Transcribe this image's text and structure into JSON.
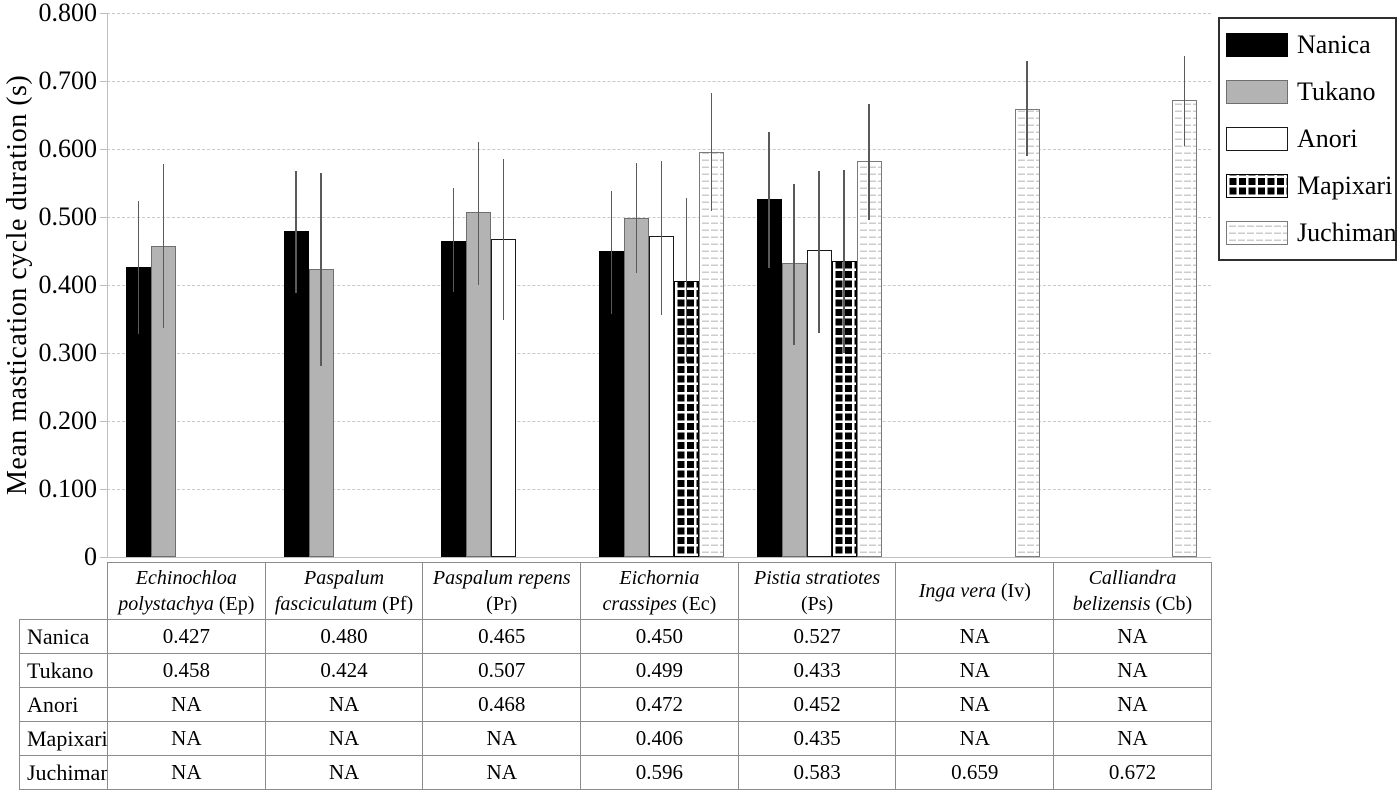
{
  "chart_data": {
    "type": "bar",
    "title": "",
    "ylabel": "Mean mastication cycle duration (s)",
    "xlabel": "",
    "ylim": [
      0,
      0.8
    ],
    "ytick_step": 0.1,
    "ytick_labels": [
      "0",
      "0.100",
      "0.200",
      "0.300",
      "0.400",
      "0.500",
      "0.600",
      "0.700",
      "0.800"
    ],
    "grid": "horizontal-dashed",
    "legend_position": "top-right-outside",
    "na_label": "NA",
    "categories": [
      {
        "species": "Echinochloa polystachya",
        "abbr": "Ep"
      },
      {
        "species": "Paspalum fasciculatum",
        "abbr": "Pf"
      },
      {
        "species": "Paspalum repens",
        "abbr": "Pr"
      },
      {
        "species": "Eichornia crassipes",
        "abbr": "Ec"
      },
      {
        "species": "Pistia stratiotes",
        "abbr": "Ps"
      },
      {
        "species": "Inga vera",
        "abbr": "Iv"
      },
      {
        "species": "Calliandra belizensis",
        "abbr": "Cb"
      }
    ],
    "series": [
      {
        "name": "Nanica",
        "pattern": "nanica",
        "values": [
          0.427,
          0.48,
          0.465,
          0.45,
          0.527,
          null,
          null
        ],
        "err_top": [
          0.523,
          0.568,
          0.543,
          0.538,
          0.625,
          null,
          null
        ],
        "err_bot": [
          0.328,
          0.388,
          0.39,
          0.358,
          0.425,
          null,
          null
        ]
      },
      {
        "name": "Tukano",
        "pattern": "tukano",
        "values": [
          0.458,
          0.424,
          0.507,
          0.499,
          0.433,
          null,
          null
        ],
        "err_top": [
          0.578,
          0.565,
          0.611,
          0.579,
          0.549,
          null,
          null
        ],
        "err_bot": [
          0.337,
          0.281,
          0.4,
          0.417,
          0.312,
          null,
          null
        ]
      },
      {
        "name": "Anori",
        "pattern": "anori",
        "values": [
          null,
          null,
          0.468,
          0.472,
          0.452,
          null,
          null
        ],
        "err_top": [
          null,
          null,
          0.585,
          0.583,
          0.567,
          null,
          null
        ],
        "err_bot": [
          null,
          null,
          0.348,
          0.356,
          0.329,
          null,
          null
        ]
      },
      {
        "name": "Mapixari",
        "pattern": "mapixari",
        "values": [
          null,
          null,
          null,
          0.406,
          0.435,
          null,
          null
        ],
        "err_top": [
          null,
          null,
          null,
          0.528,
          0.569,
          null,
          null
        ],
        "err_bot": [
          null,
          null,
          null,
          0.287,
          0.3,
          null,
          null
        ]
      },
      {
        "name": "Juchiman",
        "pattern": "juchiman",
        "values": [
          null,
          null,
          null,
          0.596,
          0.583,
          0.659,
          0.672
        ],
        "err_top": [
          null,
          null,
          null,
          0.682,
          0.666,
          0.729,
          0.737
        ],
        "err_bot": [
          null,
          null,
          null,
          0.509,
          0.495,
          0.589,
          0.605
        ]
      }
    ],
    "colors": {
      "bar_black": "#000000",
      "bar_gray": "#b3b3b3",
      "gridline": "#c9c9c9",
      "axis": "#bfbfbf",
      "error_bar": "#5a5a5a",
      "table_border": "#8c8c8c",
      "text": "#000000"
    }
  }
}
